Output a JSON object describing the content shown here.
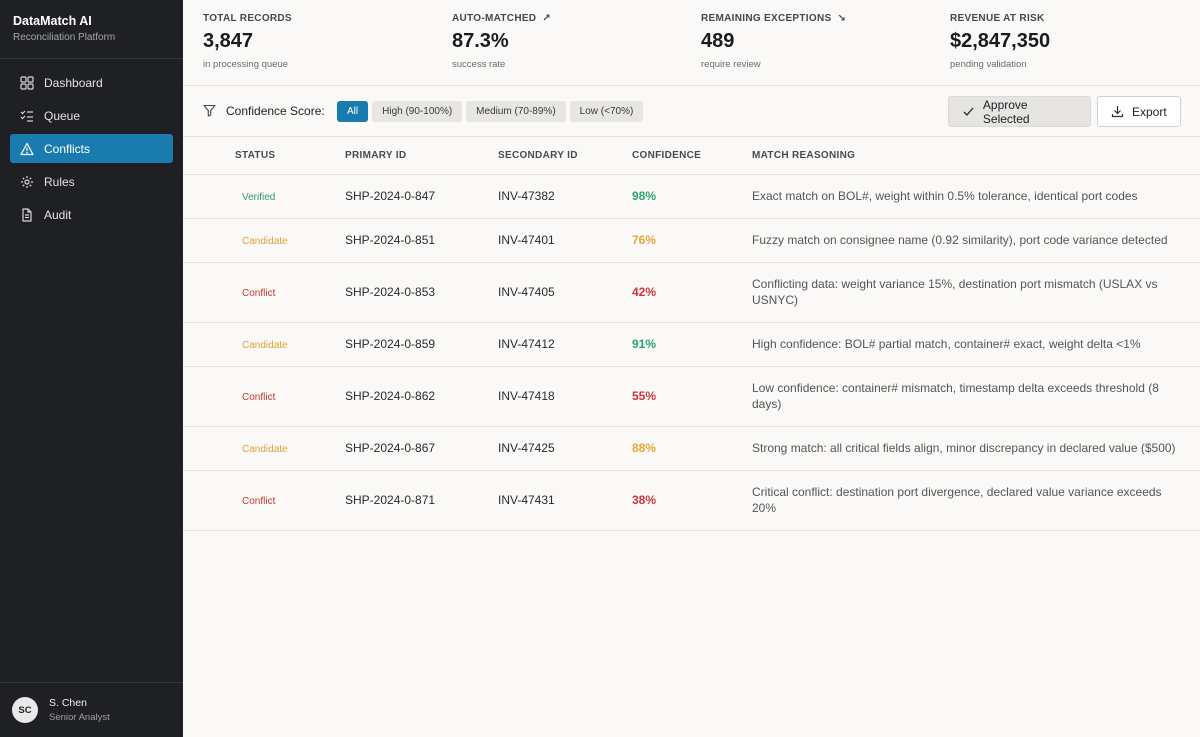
{
  "brand": {
    "title": "DataMatch AI",
    "subtitle": "Reconciliation Platform"
  },
  "nav": [
    {
      "label": "Dashboard",
      "icon": "dashboard-icon",
      "active": false
    },
    {
      "label": "Queue",
      "icon": "queue-icon",
      "active": false
    },
    {
      "label": "Conflicts",
      "icon": "warning-icon",
      "active": true
    },
    {
      "label": "Rules",
      "icon": "gear-icon",
      "active": false
    },
    {
      "label": "Audit",
      "icon": "document-icon",
      "active": false
    }
  ],
  "user": {
    "initials": "SC",
    "name": "S. Chen",
    "role": "Senior Analyst"
  },
  "stats": [
    {
      "label": "TOTAL RECORDS",
      "value": "3,847",
      "sub": "in processing queue",
      "trend": ""
    },
    {
      "label": "AUTO-MATCHED",
      "value": "87.3%",
      "sub": "success rate",
      "trend": "↗"
    },
    {
      "label": "REMAINING EXCEPTIONS",
      "value": "489",
      "sub": "require review",
      "trend": "↘"
    },
    {
      "label": "REVENUE AT RISK",
      "value": "$2,847,350",
      "sub": "pending validation",
      "trend": ""
    }
  ],
  "toolbar": {
    "filter_label": "Confidence Score:",
    "chips": [
      "All",
      "High (90-100%)",
      "Medium (70-89%)",
      "Low (<70%)"
    ],
    "active_chip": "All",
    "approve_label": "Approve Selected",
    "export_label": "Export"
  },
  "table": {
    "headers": [
      "STATUS",
      "PRIMARY ID",
      "SECONDARY ID",
      "CONFIDENCE",
      "MATCH REASONING"
    ],
    "rows": [
      {
        "status": "Verified",
        "kind": "verified",
        "primary": "SHP-2024-0-847",
        "secondary": "INV-47382",
        "confidence": "98%",
        "level": "high",
        "reason": "Exact match on BOL#, weight within 0.5% tolerance, identical port codes"
      },
      {
        "status": "Candidate",
        "kind": "candidate",
        "primary": "SHP-2024-0-851",
        "secondary": "INV-47401",
        "confidence": "76%",
        "level": "mid",
        "reason": "Fuzzy match on consignee name (0.92 similarity), port code variance detected"
      },
      {
        "status": "Conflict",
        "kind": "conflict",
        "primary": "SHP-2024-0-853",
        "secondary": "INV-47405",
        "confidence": "42%",
        "level": "low",
        "reason": "Conflicting data: weight variance 15%, destination port mismatch (USLAX vs USNYC)"
      },
      {
        "status": "Candidate",
        "kind": "candidate",
        "primary": "SHP-2024-0-859",
        "secondary": "INV-47412",
        "confidence": "91%",
        "level": "high",
        "reason": "High confidence: BOL# partial match, container# exact, weight delta <1%"
      },
      {
        "status": "Conflict",
        "kind": "conflict",
        "primary": "SHP-2024-0-862",
        "secondary": "INV-47418",
        "confidence": "55%",
        "level": "low",
        "reason": "Low confidence: container# mismatch, timestamp delta exceeds threshold (8 days)"
      },
      {
        "status": "Candidate",
        "kind": "candidate",
        "primary": "SHP-2024-0-867",
        "secondary": "INV-47425",
        "confidence": "88%",
        "level": "mid",
        "reason": "Strong match: all critical fields align, minor discrepancy in declared value ($500)"
      },
      {
        "status": "Conflict",
        "kind": "conflict",
        "primary": "SHP-2024-0-871",
        "secondary": "INV-47431",
        "confidence": "38%",
        "level": "low",
        "reason": "Critical conflict: destination port divergence, declared value variance exceeds 20%"
      }
    ]
  },
  "colors": {
    "accent": "#1a7cae",
    "sidebar": "#1f2023",
    "verified": "#2f9a63",
    "candidate": "#e0a132",
    "conflict": "#c0392b"
  }
}
